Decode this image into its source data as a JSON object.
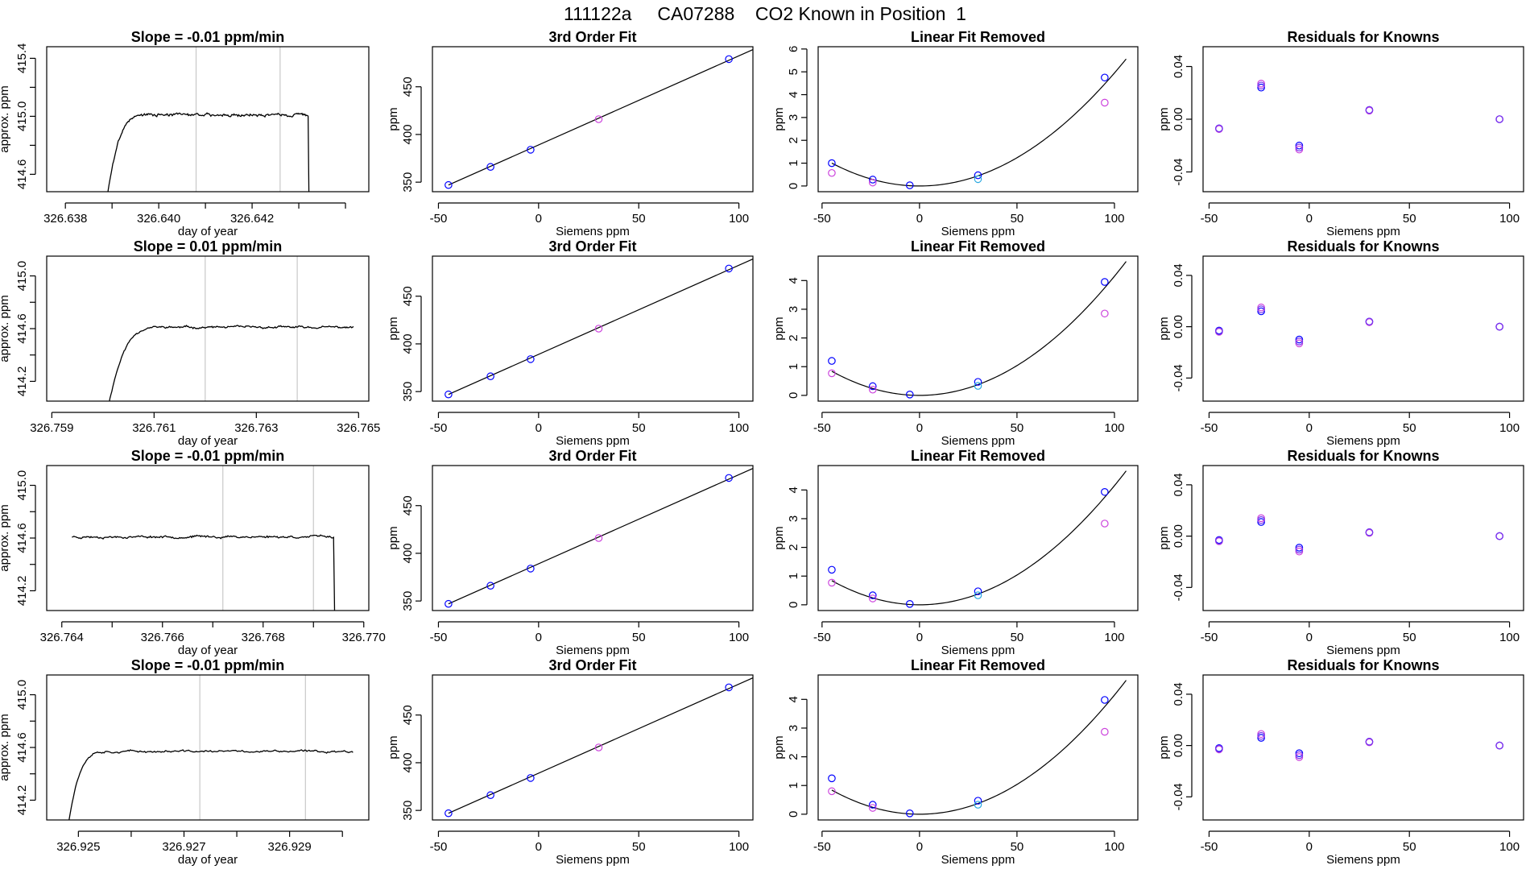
{
  "page": {
    "title": "111122a     CA07288    CO2 Known in Position  1"
  },
  "colors": {
    "trace": "#000000",
    "vline": "#c8c8c8",
    "fit_line": "#000000",
    "blue": "#0000ff",
    "magenta": "#cc44dd",
    "cyan": "#2aa8e0",
    "purple": "#7733ee"
  },
  "chart_data": [
    {
      "row": 1,
      "col": 1,
      "type": "line",
      "title": "Slope =  -0.01  ppm/min",
      "xlabel": "day of year",
      "ylabel": "approx. ppm",
      "xlim": [
        326.6376,
        326.6445
      ],
      "ylim": [
        414.48,
        415.48
      ],
      "xticks": [
        326.638,
        326.639,
        326.64,
        326.641,
        326.642,
        326.643,
        326.644
      ],
      "xticklabels": [
        "326.638",
        "",
        "326.640",
        "",
        "326.642",
        "",
        ""
      ],
      "yticks": [
        414.6,
        414.8,
        415.0,
        415.2,
        415.4
      ],
      "yticklabels": [
        "414.6",
        "",
        "415.0",
        "",
        "415.4"
      ],
      "vlines": [
        326.6408,
        326.6426
      ],
      "trace": {
        "start": 326.6389,
        "rise_end": 326.6397,
        "end": 326.6432,
        "drop": true,
        "level": 415.01,
        "low": 414.45,
        "noise": 0.015,
        "seed": 3
      }
    },
    {
      "row": 1,
      "col": 2,
      "type": "scatter",
      "title": "3rd Order Fit",
      "xlabel": "Siemens ppm",
      "ylabel": "ppm",
      "xlim": [
        -53,
        107
      ],
      "ylim": [
        340,
        492
      ],
      "xticks": [
        -50,
        0,
        50,
        100
      ],
      "xticklabels": [
        "-50",
        "0",
        "50",
        "100"
      ],
      "yticks": [
        350,
        400,
        450
      ],
      "yticklabels": [
        "350",
        "400",
        "450"
      ],
      "line": {
        "x0": -45,
        "y0": 347,
        "x1": 107,
        "y1": 489
      },
      "series": [
        {
          "color": "blue",
          "x": [
            -45,
            -24,
            -4,
            95
          ],
          "y": [
            347,
            366,
            384,
            479
          ]
        },
        {
          "color": "magenta",
          "x": [
            30
          ],
          "y": [
            416
          ]
        }
      ]
    },
    {
      "row": 1,
      "col": 3,
      "type": "scatter",
      "title": "Linear Fit Removed",
      "xlabel": "Siemens ppm",
      "ylabel": "ppm",
      "xlim": [
        -52,
        112
      ],
      "ylim": [
        -0.25,
        6.1
      ],
      "xticks": [
        -50,
        0,
        50,
        100
      ],
      "xticklabels": [
        "-50",
        "0",
        "50",
        "100"
      ],
      "yticks": [
        0,
        1,
        2,
        3,
        4,
        5,
        6
      ],
      "yticklabels": [
        "0",
        "1",
        "2",
        "3",
        "4",
        "5",
        "6"
      ],
      "curve": {
        "x0": -45,
        "x1": 106,
        "xmin": 0,
        "k": 0.000495
      },
      "series": [
        {
          "color": "blue",
          "x": [
            -45,
            -24,
            -5,
            30,
            95
          ],
          "y": [
            1.0,
            0.28,
            0.03,
            0.47,
            4.75
          ]
        },
        {
          "color": "magenta",
          "x": [
            -45,
            -24,
            95
          ],
          "y": [
            0.57,
            0.15,
            3.65
          ]
        },
        {
          "color": "cyan",
          "x": [
            30
          ],
          "y": [
            0.3
          ]
        }
      ]
    },
    {
      "row": 1,
      "col": 4,
      "type": "scatter",
      "title": "Residuals for Knowns",
      "xlabel": "Siemens ppm",
      "ylabel": "ppm",
      "xlim": [
        -53,
        107
      ],
      "ylim": [
        -0.055,
        0.055
      ],
      "xticks": [
        -50,
        0,
        50,
        100
      ],
      "xticklabels": [
        "-50",
        "0",
        "50",
        "100"
      ],
      "yticks": [
        -0.04,
        0.0,
        0.04
      ],
      "yticklabels": [
        "-0.04",
        "0.00",
        "0.04"
      ],
      "series": [
        {
          "color": "blue",
          "x": [
            -45,
            -24,
            -5,
            30,
            95
          ],
          "y": [
            -0.007,
            0.024,
            -0.02,
            0.007,
            0.0
          ]
        },
        {
          "color": "magenta",
          "x": [
            -45,
            -24,
            -5,
            30,
            95
          ],
          "y": [
            -0.0075,
            0.027,
            -0.023,
            0.0065,
            0.0
          ]
        },
        {
          "color": "purple",
          "x": [
            -45,
            -24,
            -5,
            30,
            95
          ],
          "y": [
            -0.007,
            0.0255,
            -0.0215,
            0.007,
            0.0
          ]
        }
      ]
    },
    {
      "row": 2,
      "col": 1,
      "type": "line",
      "title": "Slope =  0.01  ppm/min",
      "xlabel": "day of year",
      "ylabel": "approx. ppm",
      "xlim": [
        326.7589,
        326.7652
      ],
      "ylim": [
        414.05,
        415.15
      ],
      "xticks": [
        326.759,
        326.761,
        326.763,
        326.765
      ],
      "xticklabels": [
        "326.759",
        "326.761",
        "326.763",
        "326.765"
      ],
      "yticks": [
        414.2,
        414.4,
        414.6,
        414.8,
        415.0
      ],
      "yticklabels": [
        "414.2",
        "",
        "414.6",
        "",
        "415.0"
      ],
      "vlines": [
        326.762,
        326.7638
      ],
      "trace": {
        "start": 326.7601,
        "rise_end": 326.7611,
        "end": 326.7649,
        "drop": false,
        "level": 414.61,
        "low": 414.0,
        "noise": 0.012,
        "seed": 11
      }
    },
    {
      "row": 2,
      "col": 2,
      "type": "scatter",
      "title": "3rd Order Fit",
      "xlabel": "Siemens ppm",
      "ylabel": "ppm",
      "xlim": [
        -53,
        107
      ],
      "ylim": [
        340,
        492
      ],
      "xticks": [
        -50,
        0,
        50,
        100
      ],
      "xticklabels": [
        "-50",
        "0",
        "50",
        "100"
      ],
      "yticks": [
        350,
        400,
        450
      ],
      "yticklabels": [
        "350",
        "400",
        "450"
      ],
      "line": {
        "x0": -45,
        "y0": 347,
        "x1": 107,
        "y1": 489
      },
      "series": [
        {
          "color": "blue",
          "x": [
            -45,
            -24,
            -4,
            95
          ],
          "y": [
            347,
            366,
            384,
            479
          ]
        },
        {
          "color": "magenta",
          "x": [
            30
          ],
          "y": [
            416
          ]
        }
      ]
    },
    {
      "row": 2,
      "col": 3,
      "type": "scatter",
      "title": "Linear Fit Removed",
      "xlabel": "Siemens ppm",
      "ylabel": "ppm",
      "xlim": [
        -52,
        112
      ],
      "ylim": [
        -0.2,
        4.85
      ],
      "xticks": [
        -50,
        0,
        50,
        100
      ],
      "xticklabels": [
        "-50",
        "0",
        "50",
        "100"
      ],
      "yticks": [
        0,
        1,
        2,
        3,
        4
      ],
      "yticklabels": [
        "0",
        "1",
        "2",
        "3",
        "4"
      ],
      "curve": {
        "x0": -45,
        "x1": 106,
        "xmin": 0,
        "k": 0.000415
      },
      "series": [
        {
          "color": "blue",
          "x": [
            -45,
            -24,
            -5,
            30,
            95
          ],
          "y": [
            1.2,
            0.32,
            0.03,
            0.47,
            3.95
          ]
        },
        {
          "color": "magenta",
          "x": [
            -45,
            -24,
            95
          ],
          "y": [
            0.77,
            0.2,
            2.85
          ]
        },
        {
          "color": "cyan",
          "x": [
            30
          ],
          "y": [
            0.33
          ]
        }
      ]
    },
    {
      "row": 2,
      "col": 4,
      "type": "scatter",
      "title": "Residuals for Knowns",
      "xlabel": "Siemens ppm",
      "ylabel": "ppm",
      "xlim": [
        -53,
        107
      ],
      "ylim": [
        -0.058,
        0.055
      ],
      "xticks": [
        -50,
        0,
        50,
        100
      ],
      "xticklabels": [
        "-50",
        "0",
        "50",
        "100"
      ],
      "yticks": [
        -0.04,
        0.0,
        0.04
      ],
      "yticklabels": [
        "-0.04",
        "0.00",
        "0.04"
      ],
      "series": [
        {
          "color": "blue",
          "x": [
            -45,
            -24,
            -5,
            30,
            95
          ],
          "y": [
            -0.003,
            0.012,
            -0.01,
            0.004,
            0.0
          ]
        },
        {
          "color": "magenta",
          "x": [
            -45,
            -24,
            -5,
            30,
            95
          ],
          "y": [
            -0.004,
            0.015,
            -0.013,
            0.0035,
            0.0
          ]
        },
        {
          "color": "purple",
          "x": [
            -45,
            -24,
            -5,
            30,
            95
          ],
          "y": [
            -0.0035,
            0.0135,
            -0.0115,
            0.004,
            0.0
          ]
        }
      ]
    },
    {
      "row": 3,
      "col": 1,
      "type": "line",
      "title": "Slope =  -0.01  ppm/min",
      "xlabel": "day of year",
      "ylabel": "approx. ppm",
      "xlim": [
        326.7637,
        326.7701
      ],
      "ylim": [
        414.05,
        415.15
      ],
      "xticks": [
        326.764,
        326.765,
        326.766,
        326.767,
        326.768,
        326.769,
        326.77
      ],
      "xticklabels": [
        "326.764",
        "",
        "326.766",
        "",
        "326.768",
        "",
        "326.770"
      ],
      "yticks": [
        414.2,
        414.4,
        414.6,
        414.8,
        415.0
      ],
      "yticklabels": [
        "414.2",
        "",
        "414.6",
        "",
        "415.0"
      ],
      "vlines": [
        326.7672,
        326.769
      ],
      "trace": {
        "start": 326.7642,
        "rise_end": 326.7642,
        "end": 326.7694,
        "drop": true,
        "level": 414.61,
        "low": 414.0,
        "noise": 0.013,
        "seed": 23
      }
    },
    {
      "row": 3,
      "col": 2,
      "type": "scatter",
      "title": "3rd Order Fit",
      "xlabel": "Siemens ppm",
      "ylabel": "ppm",
      "xlim": [
        -53,
        107
      ],
      "ylim": [
        340,
        492
      ],
      "xticks": [
        -50,
        0,
        50,
        100
      ],
      "xticklabels": [
        "-50",
        "0",
        "50",
        "100"
      ],
      "yticks": [
        350,
        400,
        450
      ],
      "yticklabels": [
        "350",
        "400",
        "450"
      ],
      "line": {
        "x0": -45,
        "y0": 347,
        "x1": 107,
        "y1": 489
      },
      "series": [
        {
          "color": "blue",
          "x": [
            -45,
            -24,
            -4,
            95
          ],
          "y": [
            347,
            366,
            384,
            479
          ]
        },
        {
          "color": "magenta",
          "x": [
            30
          ],
          "y": [
            416
          ]
        }
      ]
    },
    {
      "row": 3,
      "col": 3,
      "type": "scatter",
      "title": "Linear Fit Removed",
      "xlabel": "Siemens ppm",
      "ylabel": "ppm",
      "xlim": [
        -52,
        112
      ],
      "ylim": [
        -0.2,
        4.85
      ],
      "xticks": [
        -50,
        0,
        50,
        100
      ],
      "xticklabels": [
        "-50",
        "0",
        "50",
        "100"
      ],
      "yticks": [
        0,
        1,
        2,
        3,
        4
      ],
      "yticklabels": [
        "0",
        "1",
        "2",
        "3",
        "4"
      ],
      "curve": {
        "x0": -45,
        "x1": 106,
        "xmin": 0,
        "k": 0.000415
      },
      "series": [
        {
          "color": "blue",
          "x": [
            -45,
            -24,
            -5,
            30,
            95
          ],
          "y": [
            1.22,
            0.33,
            0.03,
            0.47,
            3.93
          ]
        },
        {
          "color": "magenta",
          "x": [
            -45,
            -24,
            95
          ],
          "y": [
            0.77,
            0.22,
            2.83
          ]
        },
        {
          "color": "cyan",
          "x": [
            30
          ],
          "y": [
            0.33
          ]
        }
      ]
    },
    {
      "row": 3,
      "col": 4,
      "type": "scatter",
      "title": "Residuals for Knowns",
      "xlabel": "Siemens ppm",
      "ylabel": "ppm",
      "xlim": [
        -53,
        107
      ],
      "ylim": [
        -0.058,
        0.055
      ],
      "xticks": [
        -50,
        0,
        50,
        100
      ],
      "xticklabels": [
        "-50",
        "0",
        "50",
        "100"
      ],
      "yticks": [
        -0.04,
        0.0,
        0.04
      ],
      "yticklabels": [
        "-0.04",
        "0.00",
        "0.04"
      ],
      "series": [
        {
          "color": "blue",
          "x": [
            -45,
            -24,
            -5,
            30,
            95
          ],
          "y": [
            -0.003,
            0.011,
            -0.009,
            0.003,
            0.0
          ]
        },
        {
          "color": "magenta",
          "x": [
            -45,
            -24,
            -5,
            30,
            95
          ],
          "y": [
            -0.004,
            0.014,
            -0.012,
            0.0025,
            0.0
          ]
        },
        {
          "color": "purple",
          "x": [
            -45,
            -24,
            -5,
            30,
            95
          ],
          "y": [
            -0.0035,
            0.0125,
            -0.0105,
            0.003,
            0.0
          ]
        }
      ]
    },
    {
      "row": 4,
      "col": 1,
      "type": "line",
      "title": "Slope =  -0.01  ppm/min",
      "xlabel": "day of year",
      "ylabel": "approx. ppm",
      "xlim": [
        326.9244,
        326.9305
      ],
      "ylim": [
        414.05,
        415.15
      ],
      "xticks": [
        326.925,
        326.926,
        326.927,
        326.928,
        326.929,
        326.93
      ],
      "xticklabels": [
        "326.925",
        "",
        "326.927",
        "",
        "326.929",
        ""
      ],
      "yticks": [
        414.2,
        414.4,
        414.6,
        414.8,
        415.0
      ],
      "yticklabels": [
        "414.2",
        "",
        "414.6",
        "",
        "415.0"
      ],
      "vlines": [
        326.9273,
        326.9293
      ],
      "trace": {
        "start": 326.9248,
        "rise_end": 326.9255,
        "end": 326.9302,
        "drop": false,
        "level": 414.57,
        "low": 414.0,
        "noise": 0.012,
        "seed": 37
      }
    },
    {
      "row": 4,
      "col": 2,
      "type": "scatter",
      "title": "3rd Order Fit",
      "xlabel": "Siemens ppm",
      "ylabel": "ppm",
      "xlim": [
        -53,
        107
      ],
      "ylim": [
        340,
        492
      ],
      "xticks": [
        -50,
        0,
        50,
        100
      ],
      "xticklabels": [
        "-50",
        "0",
        "50",
        "100"
      ],
      "yticks": [
        350,
        400,
        450
      ],
      "yticklabels": [
        "350",
        "400",
        "450"
      ],
      "line": {
        "x0": -45,
        "y0": 347,
        "x1": 107,
        "y1": 489
      },
      "series": [
        {
          "color": "blue",
          "x": [
            -45,
            -24,
            -4,
            95
          ],
          "y": [
            347,
            366,
            384,
            479
          ]
        },
        {
          "color": "magenta",
          "x": [
            30
          ],
          "y": [
            416
          ]
        }
      ]
    },
    {
      "row": 4,
      "col": 3,
      "type": "scatter",
      "title": "Linear Fit Removed",
      "xlabel": "Siemens ppm",
      "ylabel": "ppm",
      "xlim": [
        -52,
        112
      ],
      "ylim": [
        -0.2,
        4.85
      ],
      "xticks": [
        -50,
        0,
        50,
        100
      ],
      "xticklabels": [
        "-50",
        "0",
        "50",
        "100"
      ],
      "yticks": [
        0,
        1,
        2,
        3,
        4
      ],
      "yticklabels": [
        "0",
        "1",
        "2",
        "3",
        "4"
      ],
      "curve": {
        "x0": -45,
        "x1": 106,
        "xmin": 0,
        "k": 0.000415
      },
      "series": [
        {
          "color": "blue",
          "x": [
            -45,
            -24,
            -5,
            30,
            95
          ],
          "y": [
            1.25,
            0.33,
            0.03,
            0.47,
            3.98
          ]
        },
        {
          "color": "magenta",
          "x": [
            -45,
            -24,
            95
          ],
          "y": [
            0.8,
            0.22,
            2.87
          ]
        },
        {
          "color": "cyan",
          "x": [
            30
          ],
          "y": [
            0.33
          ]
        }
      ]
    },
    {
      "row": 4,
      "col": 4,
      "type": "scatter",
      "title": "Residuals for Knowns",
      "xlabel": "Siemens ppm",
      "ylabel": "ppm",
      "xlim": [
        -53,
        107
      ],
      "ylim": [
        -0.058,
        0.055
      ],
      "xticks": [
        -50,
        0,
        50,
        100
      ],
      "xticklabels": [
        "-50",
        "0",
        "50",
        "100"
      ],
      "yticks": [
        -0.04,
        0.0,
        0.04
      ],
      "yticklabels": [
        "-0.04",
        "0.00",
        "0.04"
      ],
      "series": [
        {
          "color": "blue",
          "x": [
            -45,
            -24,
            -5,
            30,
            95
          ],
          "y": [
            -0.002,
            0.006,
            -0.006,
            0.003,
            0.0
          ]
        },
        {
          "color": "magenta",
          "x": [
            -45,
            -24,
            -5,
            30,
            95
          ],
          "y": [
            -0.003,
            0.009,
            -0.009,
            0.0025,
            0.0
          ]
        },
        {
          "color": "purple",
          "x": [
            -45,
            -24,
            -5,
            30,
            95
          ],
          "y": [
            -0.0025,
            0.0075,
            -0.0075,
            0.003,
            0.0
          ]
        }
      ]
    }
  ]
}
